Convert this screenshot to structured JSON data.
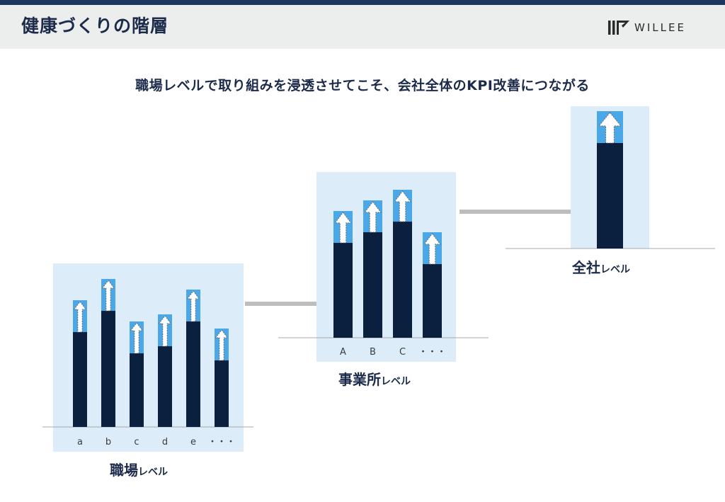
{
  "header": {
    "title": "健康づくりの階層",
    "logo_text": "WILLEE"
  },
  "headline": "職場レベルで取り組みを浸透させてこそ、会社全体のKPI改善につながる",
  "levels": {
    "workplace": {
      "name": "職場",
      "suffix": "レベル"
    },
    "office": {
      "name": "事業所",
      "suffix": "レベル"
    },
    "company": {
      "name": "全社",
      "suffix": "レベル"
    }
  },
  "colors": {
    "bar": "#0b1f3f",
    "arrow_box": "#4aa8e8",
    "panel": "#dcecf9",
    "connector": "#bdbdbd",
    "header_band": "#1d3763"
  },
  "chart_data": [
    {
      "type": "bar",
      "level": "職場レベル",
      "categories": [
        "a",
        "b",
        "c",
        "d",
        "e",
        "・・・"
      ],
      "values": [
        134,
        164,
        104,
        114,
        149,
        94
      ],
      "improvement": [
        45,
        45,
        45,
        45,
        45,
        45
      ],
      "ylim": [
        0,
        220
      ],
      "grid": false
    },
    {
      "type": "bar",
      "level": "事業所レベル",
      "categories": [
        "A",
        "B",
        "C",
        "・・・"
      ],
      "values": [
        134,
        149,
        164,
        104
      ],
      "improvement": [
        45,
        45,
        45,
        45
      ],
      "ylim": [
        0,
        220
      ],
      "grid": false
    },
    {
      "type": "bar",
      "level": "全社レベル",
      "categories": [
        ""
      ],
      "values": [
        149
      ],
      "improvement": [
        45
      ],
      "ylim": [
        0,
        220
      ],
      "grid": false
    }
  ]
}
